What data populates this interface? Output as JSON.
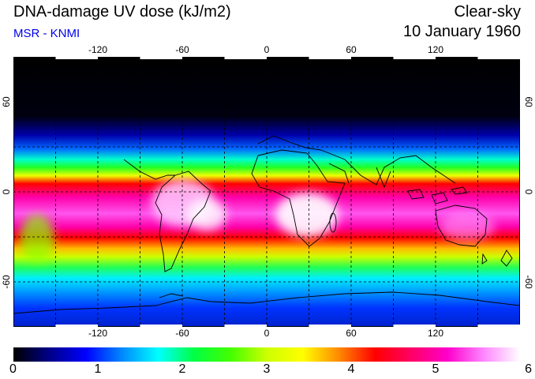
{
  "header": {
    "title": "DNA-damage UV dose (kJ/m2)",
    "source": "MSR - KNMI",
    "condition": "Clear-sky",
    "date": "10 January 1960"
  },
  "map": {
    "projection": "equirectangular",
    "lon_range": [
      -180,
      180
    ],
    "lat_range": [
      -90,
      90
    ],
    "grid_lon": [
      -150,
      -120,
      -90,
      -60,
      -30,
      0,
      30,
      60,
      90,
      120,
      150
    ],
    "grid_lat": [
      -60,
      -30,
      0,
      30,
      60
    ],
    "lon_tick_labels": [
      "-120",
      "-60",
      "0",
      "60",
      "120"
    ],
    "lat_tick_labels": [
      "60",
      "0",
      "-60"
    ]
  },
  "colorbar": {
    "min": 0,
    "max": 6,
    "tick_labels": [
      "0",
      "1",
      "2",
      "3",
      "4",
      "5",
      "6"
    ],
    "colors": [
      "#000000",
      "#000088",
      "#0000ff",
      "#0088ff",
      "#00ffff",
      "#00ff44",
      "#44ff00",
      "#ccff00",
      "#ffff00",
      "#ff8800",
      "#ff0000",
      "#ff0066",
      "#ff00cc",
      "#ff88ff",
      "#ffffff"
    ]
  }
}
